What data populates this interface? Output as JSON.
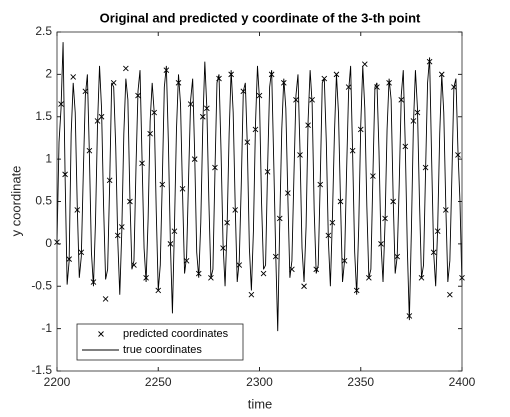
{
  "chart_data": {
    "type": "line",
    "title": "Original and predicted y coordinate of the 3-th point",
    "xlabel": "time",
    "ylabel": "y coordinate",
    "xlim": [
      2200,
      2400
    ],
    "xticks": [
      2200,
      2250,
      2300,
      2350,
      2400
    ],
    "ylim": [
      -1.5,
      2.5
    ],
    "yticks": [
      -1.5,
      -1,
      -0.5,
      0,
      0.5,
      1,
      1.5,
      2,
      2.5
    ],
    "grid": false,
    "legend": "lower left",
    "series": [
      {
        "name": "predicted coordinates",
        "color": "#000000",
        "mode": "markers",
        "x": [
          2200,
          2202,
          2204,
          2206,
          2208,
          2210,
          2212,
          2214,
          2216,
          2218,
          2220,
          2222,
          2224,
          2226,
          2228,
          2230,
          2232,
          2234,
          2236,
          2238,
          2240,
          2242,
          2244,
          2246,
          2248,
          2250,
          2252,
          2254,
          2256,
          2258,
          2260,
          2262,
          2264,
          2266,
          2268,
          2270,
          2272,
          2274,
          2276,
          2278,
          2280,
          2282,
          2284,
          2286,
          2288,
          2290,
          2292,
          2294,
          2296,
          2298,
          2300,
          2302,
          2304,
          2306,
          2308,
          2310,
          2312,
          2314,
          2316,
          2318,
          2320,
          2322,
          2324,
          2326,
          2328,
          2330,
          2332,
          2334,
          2336,
          2338,
          2340,
          2342,
          2344,
          2346,
          2348,
          2350,
          2352,
          2354,
          2356,
          2358,
          2360,
          2362,
          2364,
          2366,
          2368,
          2370,
          2372,
          2374,
          2376,
          2378,
          2380,
          2382,
          2384,
          2386,
          2388,
          2390,
          2392,
          2394,
          2396,
          2398,
          2400
        ],
        "values": [
          0.02,
          1.65,
          0.82,
          -0.18,
          1.97,
          0.4,
          -0.1,
          1.8,
          1.1,
          -0.45,
          1.45,
          1.5,
          -0.65,
          0.75,
          1.9,
          0.1,
          0.2,
          2.07,
          0.5,
          -0.25,
          1.75,
          0.95,
          -0.4,
          1.3,
          1.55,
          -0.55,
          0.7,
          2.05,
          0.0,
          0.15,
          1.9,
          0.65,
          -0.2,
          1.65,
          1.0,
          -0.35,
          1.5,
          1.6,
          -0.4,
          0.9,
          1.95,
          -0.05,
          0.25,
          2.0,
          0.4,
          -0.25,
          1.8,
          1.2,
          -0.6,
          1.35,
          1.75,
          -0.35,
          0.85,
          2.0,
          -0.15,
          0.3,
          1.9,
          0.6,
          -0.3,
          1.7,
          1.05,
          -0.5,
          1.4,
          1.7,
          -0.3,
          0.7,
          1.95,
          0.1,
          0.25,
          2.0,
          0.5,
          -0.2,
          1.85,
          1.1,
          -0.55,
          1.35,
          2.12,
          -0.4,
          0.8,
          1.85,
          0.0,
          0.3,
          1.9,
          0.5,
          -0.15,
          1.7,
          1.15,
          -0.85,
          1.45,
          1.55,
          -0.4,
          0.9,
          2.15,
          -0.1,
          0.15,
          2.0,
          0.4,
          -0.6,
          1.85,
          1.05,
          -0.4
        ]
      },
      {
        "name": "true coordinates",
        "color": "#000000",
        "mode": "lines",
        "x": [
          2200,
          2201,
          2202,
          2203,
          2204,
          2205,
          2206,
          2207,
          2208,
          2209,
          2210,
          2211,
          2212,
          2213,
          2214,
          2215,
          2216,
          2217,
          2218,
          2219,
          2220,
          2221,
          2222,
          2223,
          2224,
          2225,
          2226,
          2227,
          2228,
          2229,
          2230,
          2231,
          2232,
          2233,
          2234,
          2235,
          2236,
          2237,
          2238,
          2239,
          2240,
          2241,
          2242,
          2243,
          2244,
          2245,
          2246,
          2247,
          2248,
          2249,
          2250,
          2251,
          2252,
          2253,
          2254,
          2255,
          2256,
          2257,
          2258,
          2259,
          2260,
          2261,
          2262,
          2263,
          2264,
          2265,
          2266,
          2267,
          2268,
          2269,
          2270,
          2271,
          2272,
          2273,
          2274,
          2275,
          2276,
          2277,
          2278,
          2279,
          2280,
          2281,
          2282,
          2283,
          2284,
          2285,
          2286,
          2287,
          2288,
          2289,
          2290,
          2291,
          2292,
          2293,
          2294,
          2295,
          2296,
          2297,
          2298,
          2299,
          2300,
          2301,
          2302,
          2303,
          2304,
          2305,
          2306,
          2307,
          2308,
          2309,
          2310,
          2311,
          2312,
          2313,
          2314,
          2315,
          2316,
          2317,
          2318,
          2319,
          2320,
          2321,
          2322,
          2323,
          2324,
          2325,
          2326,
          2327,
          2328,
          2329,
          2330,
          2331,
          2332,
          2333,
          2334,
          2335,
          2336,
          2337,
          2338,
          2339,
          2340,
          2341,
          2342,
          2343,
          2344,
          2345,
          2346,
          2347,
          2348,
          2349,
          2350,
          2351,
          2352,
          2353,
          2354,
          2355,
          2356,
          2357,
          2358,
          2359,
          2360,
          2361,
          2362,
          2363,
          2364,
          2365,
          2366,
          2367,
          2368,
          2369,
          2370,
          2371,
          2372,
          2373,
          2374,
          2375,
          2376,
          2377,
          2378,
          2379,
          2380,
          2381,
          2382,
          2383,
          2384,
          2385,
          2386,
          2387,
          2388,
          2389,
          2390,
          2391,
          2392,
          2393,
          2394,
          2395,
          2396,
          2397,
          2398,
          2399,
          2400
        ],
        "values": [
          0.02,
          1.2,
          1.6,
          2.38,
          0.8,
          -0.48,
          -0.2,
          1.3,
          1.9,
          1.55,
          0.45,
          -0.4,
          -0.15,
          0.85,
          1.75,
          2.0,
          1.05,
          -0.1,
          -0.5,
          0.25,
          1.4,
          2.1,
          1.6,
          0.45,
          -0.42,
          -0.3,
          0.7,
          1.9,
          1.85,
          1.15,
          0.05,
          -0.6,
          0.15,
          1.3,
          1.95,
          1.7,
          0.55,
          -0.3,
          -0.2,
          0.9,
          1.8,
          2.05,
          1.0,
          -0.05,
          -0.45,
          0.3,
          1.45,
          1.9,
          1.55,
          0.4,
          -0.55,
          -0.25,
          0.75,
          1.85,
          2.1,
          1.2,
          0.0,
          -0.82,
          0.2,
          1.35,
          2.0,
          1.65,
          0.6,
          -0.35,
          -0.15,
          0.8,
          1.7,
          1.95,
          1.05,
          -0.1,
          -0.4,
          0.25,
          1.4,
          2.15,
          1.6,
          0.5,
          -0.4,
          -0.3,
          0.85,
          1.9,
          2.0,
          1.1,
          0.0,
          -0.5,
          0.2,
          1.3,
          2.05,
          1.55,
          0.45,
          -0.45,
          -0.2,
          0.7,
          1.8,
          1.9,
          1.15,
          -0.05,
          -0.55,
          0.15,
          1.4,
          2.1,
          1.7,
          0.5,
          -0.3,
          -0.25,
          0.9,
          1.85,
          2.05,
          1.0,
          -0.1,
          -1.03,
          0.25,
          1.35,
          1.95,
          1.6,
          0.55,
          -0.4,
          -0.2,
          0.8,
          1.75,
          2.0,
          1.1,
          -0.05,
          -0.45,
          0.2,
          1.45,
          2.05,
          1.65,
          0.4,
          -0.35,
          -0.25,
          0.75,
          1.9,
          1.95,
          1.2,
          0.05,
          -0.5,
          0.3,
          1.3,
          2.0,
          1.55,
          0.5,
          -0.45,
          -0.2,
          0.85,
          1.8,
          2.1,
          1.05,
          -0.1,
          -0.6,
          0.2,
          1.4,
          2.1,
          1.6,
          0.45,
          -0.4,
          -0.3,
          0.8,
          1.85,
          1.9,
          1.1,
          0.0,
          -0.45,
          0.25,
          1.35,
          1.95,
          1.7,
          0.55,
          -0.35,
          -0.15,
          0.7,
          1.75,
          2.05,
          1.15,
          -0.05,
          -0.9,
          0.15,
          1.4,
          2.05,
          1.6,
          0.5,
          -0.4,
          -0.25,
          0.85,
          1.9,
          2.2,
          1.0,
          -0.1,
          -0.5,
          0.2,
          1.3,
          2.0,
          1.55,
          0.45,
          -0.45,
          -0.2,
          0.8,
          1.85,
          1.95,
          1.1,
          0.5,
          -0.5
        ]
      }
    ]
  }
}
